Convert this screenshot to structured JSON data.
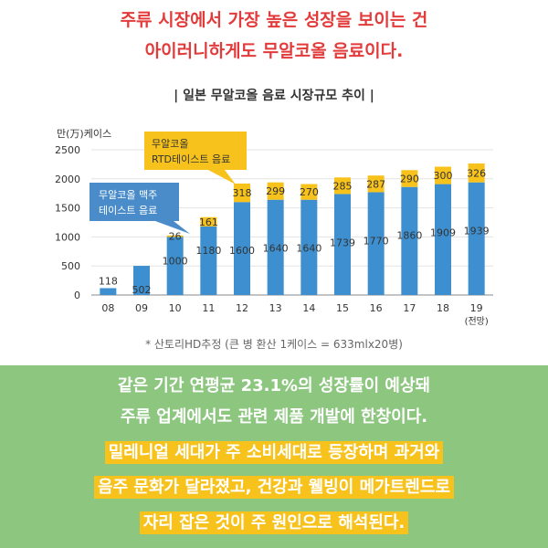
{
  "headline": {
    "line1": "주류 시장에서 가장 높은 성장을 보이는 건",
    "line2": "아이러니하게도 무알코올 음료이다."
  },
  "chart_title": "| 일본 무알코올 음료 시장규모 추이 |",
  "source_note": "* 산토리HD추정 (큰 병 환산 1케이스 = 633mlx20병)",
  "colors": {
    "beer": "#3d8fd0",
    "rtd": "#f7c21b",
    "headline": "#e33b3b",
    "panel": "#8cc67f",
    "callout_beer": "#4a8cc9",
    "callout_rtd": "#f7c21b"
  },
  "chart_data": {
    "type": "bar",
    "stacked": true,
    "ylabel": "만(万)케이스",
    "ylim": [
      0,
      2500
    ],
    "yticks": [
      0,
      500,
      1000,
      1500,
      2000,
      2500
    ],
    "categories": [
      "08",
      "09",
      "10",
      "11",
      "12",
      "13",
      "14",
      "15",
      "16",
      "17",
      "18",
      "19"
    ],
    "x_sublabel": "(전망)",
    "series": [
      {
        "name": "무알코올 맥주 테이스트 음료",
        "values": [
          118,
          502,
          1000,
          1180,
          1600,
          1640,
          1640,
          1739,
          1770,
          1860,
          1909,
          1939
        ]
      },
      {
        "name": "무알코올 RTD테이스트 음료",
        "values": [
          null,
          null,
          26,
          161,
          318,
          299,
          270,
          285,
          287,
          290,
          300,
          326
        ]
      }
    ],
    "callouts": {
      "beer_line1": "무알코올 맥주",
      "beer_line2": "테이스트 음료",
      "rtd_line1": "무알코올",
      "rtd_line2": "RTD테이스트 음료"
    }
  },
  "bottom_text": {
    "line1": "같은 기간 연평균 23.1%의 성장률이 예상돼",
    "line2": "주류 업계에서도 관련 제품 개발에 한창이다.",
    "line3": "밀레니얼 세대가 주 소비세대로 등장하며 과거와",
    "line4": "음주 문화가 달라졌고, 건강과 웰빙이 메가트렌드로",
    "line5": "자리 잡은 것이 주 원인으로 해석된다."
  }
}
